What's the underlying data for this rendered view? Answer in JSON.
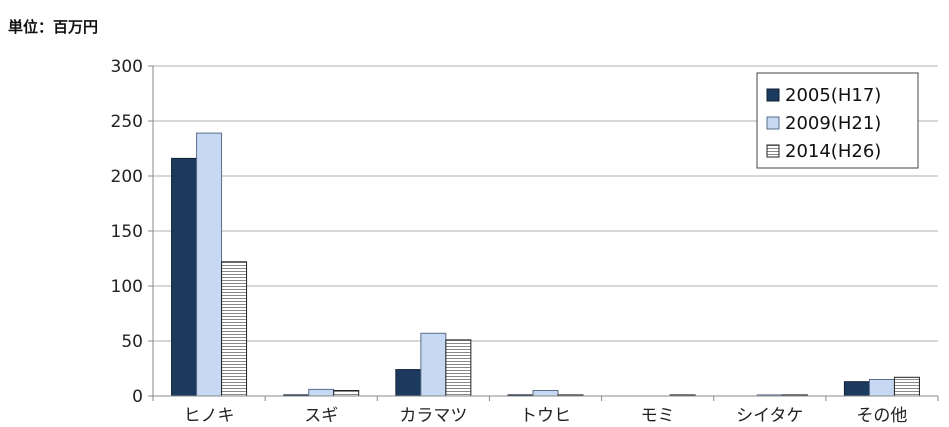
{
  "unit_label": "単位：百万円",
  "colors": {
    "s2005": "#1c3a5e",
    "s2009": "#c6d8f2",
    "s2014": "#ffffff",
    "grid": "#b0b0b0",
    "axis": "#888888"
  },
  "chart_data": {
    "type": "bar",
    "categories": [
      "ヒノキ",
      "スギ",
      "カラマツ",
      "トウヒ",
      "モミ",
      "シイタケ",
      "その他"
    ],
    "series": [
      {
        "name": "2005(H17)",
        "values": [
          216,
          1,
          24,
          1,
          0,
          0,
          13
        ]
      },
      {
        "name": "2009(H21)",
        "values": [
          239,
          6,
          57,
          5,
          0,
          1,
          15
        ]
      },
      {
        "name": "2014(H26)",
        "values": [
          122,
          5,
          51,
          1,
          1,
          1,
          17
        ]
      }
    ],
    "ylim": [
      0,
      300
    ],
    "yticks": [
      0,
      50,
      100,
      150,
      200,
      250,
      300
    ],
    "grid": true,
    "legend": "top-right"
  }
}
